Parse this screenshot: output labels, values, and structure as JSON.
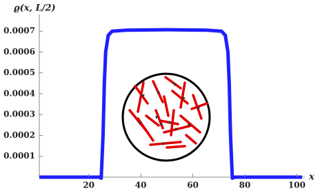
{
  "chart_data": {
    "type": "line",
    "ylabel": "ϱ(x, L/2)",
    "xlabel": "x",
    "x": [
      1,
      24,
      24.8,
      25.5,
      26,
      26.5,
      27.5,
      29,
      35,
      50,
      65,
      71,
      72.5,
      73.5,
      74,
      74.5,
      75.2,
      76,
      102
    ],
    "series": [
      {
        "color": "#1f1fff",
        "values": [
          0,
          0,
          -5e-06,
          0.0002,
          0.00045,
          0.0006,
          0.00068,
          0.0007,
          0.000705,
          0.000707,
          0.000705,
          0.0007,
          0.00068,
          0.0006,
          0.00045,
          0.0002,
          -5e-06,
          0,
          0
        ]
      }
    ],
    "xlim": [
      1,
      102
    ],
    "ylim": [
      0,
      0.00078
    ],
    "xticks": [
      20,
      40,
      60,
      80,
      100
    ],
    "yticks": [
      0.0001,
      0.0002,
      0.0003,
      0.0004,
      0.0005,
      0.0006,
      0.0007
    ]
  }
}
